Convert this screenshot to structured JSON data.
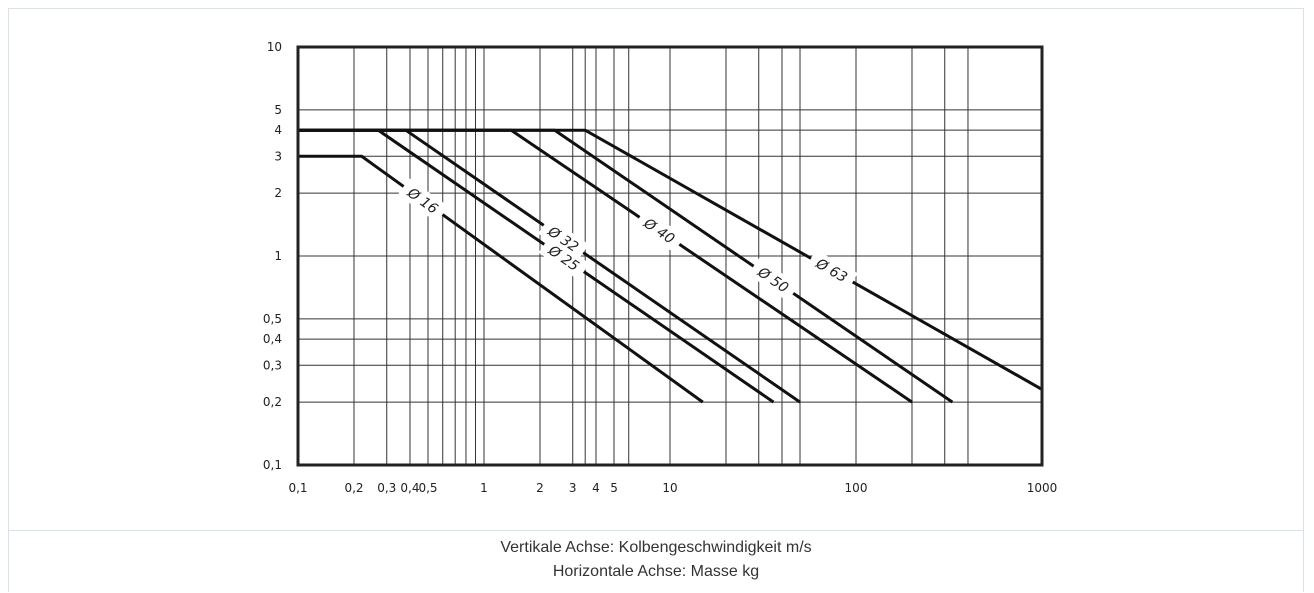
{
  "chart_data": {
    "type": "line",
    "x_scale": "log",
    "y_scale": "log",
    "xlim": [
      0.1,
      1000
    ],
    "ylim": [
      0.1,
      10
    ],
    "grid": true,
    "x_ticks": [
      {
        "v": 0.1,
        "label": "0,1"
      },
      {
        "v": 0.2,
        "label": "0,2"
      },
      {
        "v": 0.3,
        "label": "0,3"
      },
      {
        "v": 0.4,
        "label": "0,4"
      },
      {
        "v": 0.5,
        "label": "0,5"
      },
      {
        "v": 1,
        "label": "1"
      },
      {
        "v": 2,
        "label": "2"
      },
      {
        "v": 3,
        "label": "3"
      },
      {
        "v": 4,
        "label": "4"
      },
      {
        "v": 5,
        "label": "5"
      },
      {
        "v": 10,
        "label": "10"
      },
      {
        "v": 100,
        "label": "100"
      },
      {
        "v": 1000,
        "label": "1000"
      }
    ],
    "x_minor_grid": [
      0.6,
      0.7,
      0.8,
      0.9,
      3.5,
      6,
      20,
      30,
      40,
      50,
      200,
      300,
      400
    ],
    "y_ticks": [
      {
        "v": 0.1,
        "label": "0,1"
      },
      {
        "v": 0.2,
        "label": "0,2"
      },
      {
        "v": 0.3,
        "label": "0,3"
      },
      {
        "v": 0.4,
        "label": "0,4"
      },
      {
        "v": 0.5,
        "label": "0,5"
      },
      {
        "v": 1,
        "label": "1"
      },
      {
        "v": 2,
        "label": "2"
      },
      {
        "v": 3,
        "label": "3"
      },
      {
        "v": 4,
        "label": "4"
      },
      {
        "v": 5,
        "label": "5"
      },
      {
        "v": 10,
        "label": "10"
      }
    ],
    "series": [
      {
        "name": "Ø 16",
        "points": [
          [
            0.1,
            3
          ],
          [
            0.22,
            3
          ],
          [
            15,
            0.2
          ]
        ]
      },
      {
        "name": "Ø 25",
        "points": [
          [
            0.1,
            4
          ],
          [
            0.27,
            4
          ],
          [
            36,
            0.2
          ]
        ]
      },
      {
        "name": "Ø 32",
        "points": [
          [
            0.1,
            4
          ],
          [
            0.38,
            4
          ],
          [
            50,
            0.2
          ]
        ]
      },
      {
        "name": "Ø 40",
        "points": [
          [
            0.1,
            4
          ],
          [
            1.4,
            4
          ],
          [
            200,
            0.2
          ]
        ]
      },
      {
        "name": "Ø 50",
        "points": [
          [
            0.1,
            4
          ],
          [
            2.4,
            4
          ],
          [
            330,
            0.2
          ]
        ]
      },
      {
        "name": "Ø 63",
        "points": [
          [
            0.1,
            4
          ],
          [
            3.5,
            4
          ],
          [
            1000,
            0.23
          ]
        ]
      }
    ]
  },
  "caption": {
    "line1": "Vertikale Achse: Kolbengeschwindigkeit m/s",
    "line2": "Horizontale Achse: Masse kg"
  }
}
